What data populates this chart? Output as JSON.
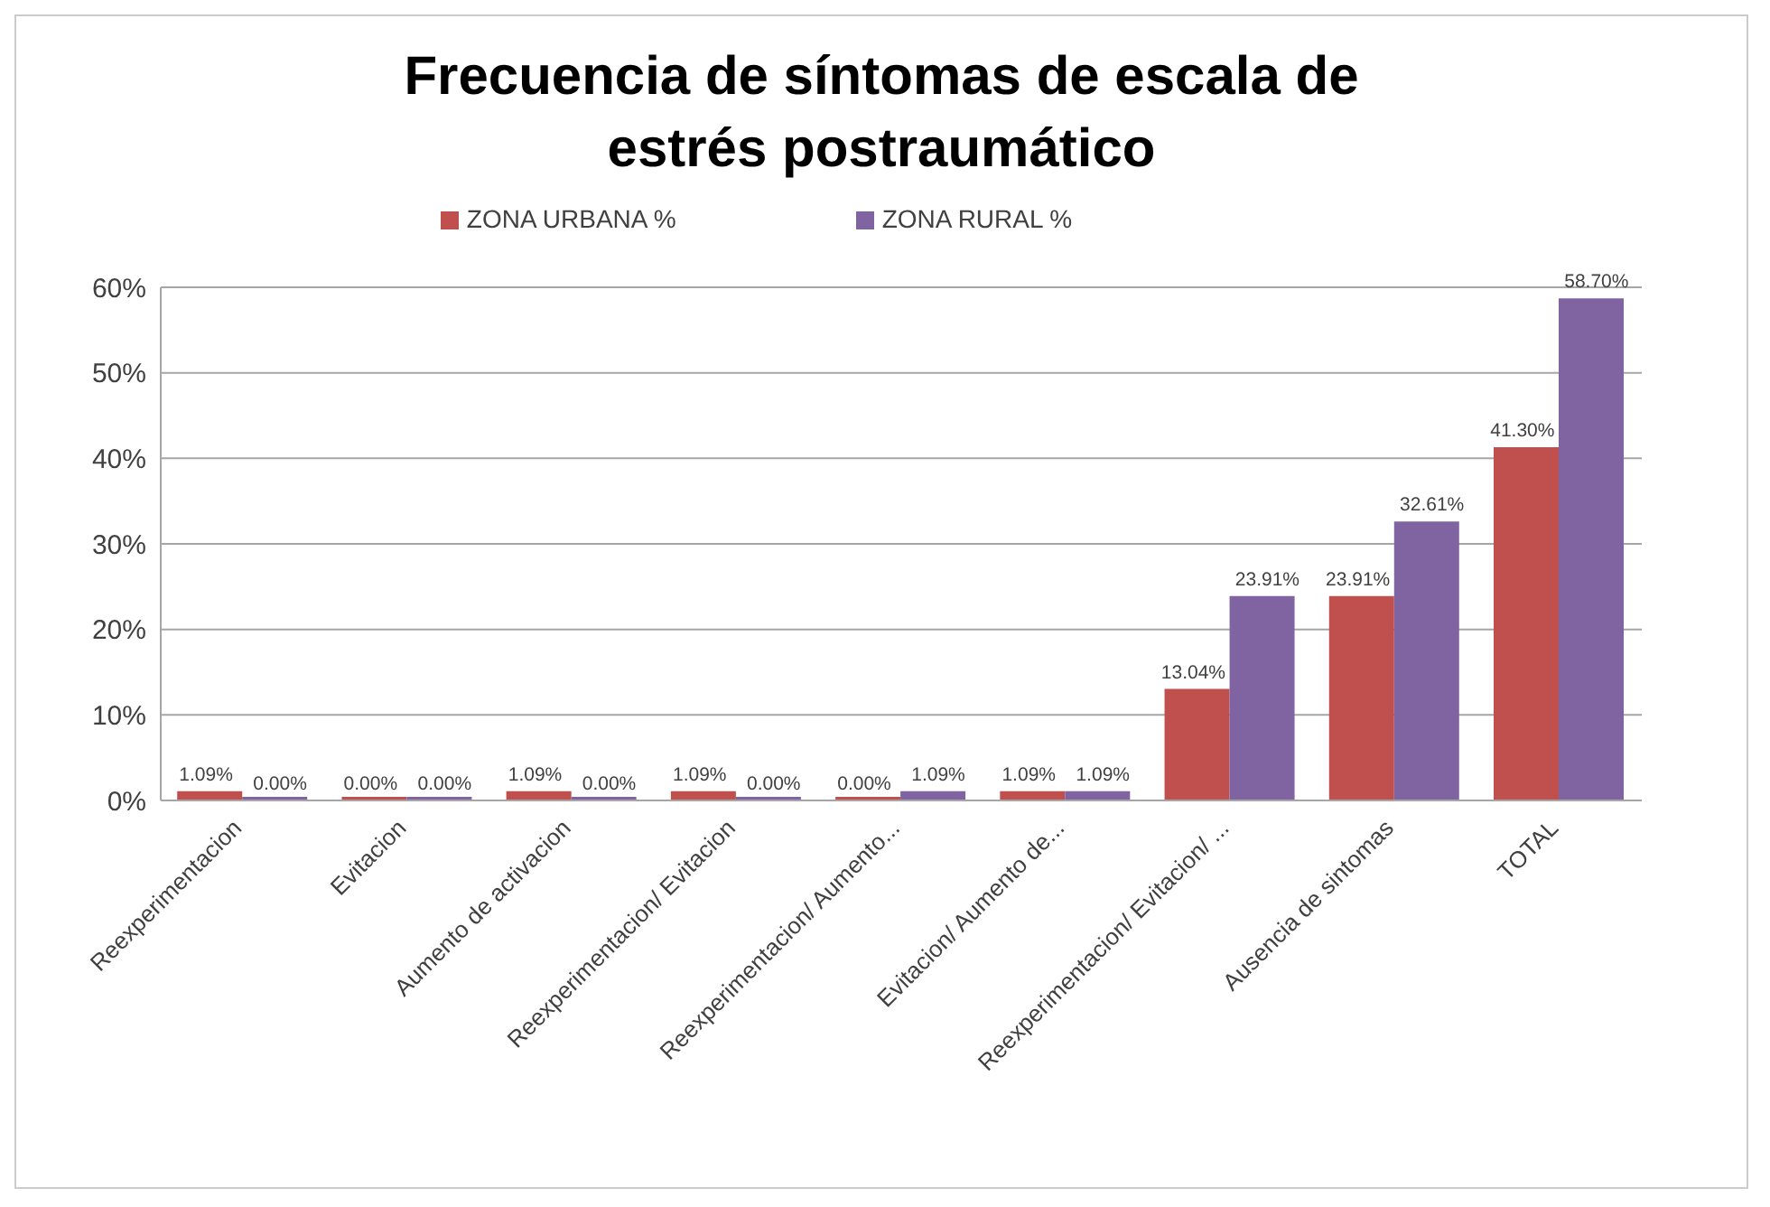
{
  "chart_data": {
    "type": "bar",
    "title": "Frecuencia de síntomas de escala de estrés postraumático",
    "categories": [
      "Reexperimentacion",
      "Evitacion",
      "Aumento de activacion",
      "Reexperimentacion/ Evitacion",
      "Reexperimentacion/ Aumento...",
      "Evitacion/ Aumento de...",
      "Reexperimentacion/ Evitacion/ ...",
      "Ausencia de sintomas",
      "TOTAL"
    ],
    "series": [
      {
        "name": "ZONA URBANA %",
        "color": "#c0504d",
        "values": [
          1.09,
          0,
          1.09,
          1.09,
          0,
          1.09,
          13.04,
          23.91,
          41.3
        ],
        "value_labels": [
          "1.09%",
          "0.00%",
          "1.09%",
          "1.09%",
          "0.00%",
          "1.09%",
          "13.04%",
          "23.91%",
          "41.30%"
        ]
      },
      {
        "name": "ZONA RURAL %",
        "color": "#8064a2",
        "values": [
          0,
          0,
          0,
          0,
          1.09,
          1.09,
          23.91,
          32.61,
          58.7
        ],
        "value_labels": [
          "0.00%",
          "0.00%",
          "0.00%",
          "0.00%",
          "1.09%",
          "1.09%",
          "23.91%",
          "32.61%",
          "58.70%"
        ]
      }
    ],
    "ylim": [
      0,
      60
    ],
    "yticks": [
      {
        "value": 0,
        "label": "0%"
      },
      {
        "value": 10,
        "label": "10%"
      },
      {
        "value": 20,
        "label": "20%"
      },
      {
        "value": 30,
        "label": "30%"
      },
      {
        "value": 40,
        "label": "40%"
      },
      {
        "value": 50,
        "label": "50%"
      },
      {
        "value": 60,
        "label": "60%"
      }
    ],
    "grid": "y",
    "legend": "top"
  }
}
